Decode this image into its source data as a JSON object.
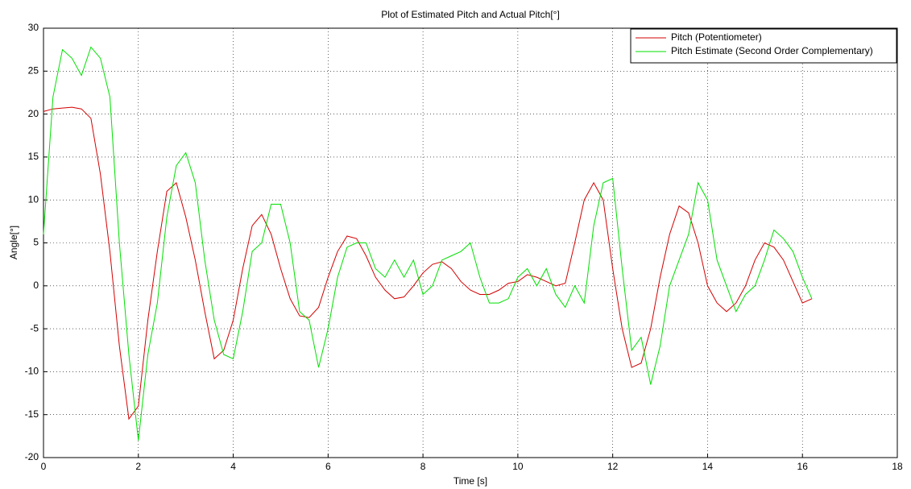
{
  "chart_data": {
    "type": "line",
    "title": "Plot of Estimated Pitch and Actual Pitch[°]",
    "x_label": "Time [s]",
    "y_label": "Angle[°]",
    "x": [
      0,
      0.2,
      0.4,
      0.6,
      0.8,
      1,
      1.2,
      1.4,
      1.6,
      1.8,
      2,
      2.2,
      2.4,
      2.6,
      2.8,
      3,
      3.2,
      3.4,
      3.6,
      3.8,
      4,
      4.2,
      4.4,
      4.6,
      4.8,
      5,
      5.2,
      5.4,
      5.6,
      5.8,
      6,
      6.2,
      6.4,
      6.6,
      6.8,
      7,
      7.2,
      7.4,
      7.6,
      7.8,
      8,
      8.2,
      8.4,
      8.6,
      8.8,
      9,
      9.2,
      9.4,
      9.6,
      9.8,
      10,
      10.2,
      10.4,
      10.6,
      10.8,
      11,
      11.2,
      11.4,
      11.6,
      11.8,
      12,
      12.2,
      12.4,
      12.6,
      12.8,
      13,
      13.2,
      13.4,
      13.6,
      13.8,
      14,
      14.2,
      14.4,
      14.6,
      14.8,
      15,
      15.2,
      15.4,
      15.6,
      15.8,
      16,
      16.2
    ],
    "series": [
      {
        "name": "Pitch (Potentiometer)",
        "color": "#d40000",
        "values": [
          20.3,
          20.6,
          20.7,
          20.8,
          20.6,
          19.5,
          13,
          4,
          -7,
          -15.5,
          -14,
          -4,
          4,
          11,
          12,
          8,
          3,
          -3,
          -8.5,
          -7.5,
          -4,
          2,
          7,
          8.3,
          6,
          2,
          -1.5,
          -3.5,
          -3.7,
          -2.5,
          1,
          4,
          5.8,
          5.5,
          3.5,
          1,
          -0.5,
          -1.5,
          -1.3,
          0,
          1.5,
          2.5,
          2.8,
          2,
          0.5,
          -0.5,
          -1,
          -1,
          -0.5,
          0.3,
          0.5,
          1.3,
          1,
          0.5,
          0,
          0.3,
          5,
          10,
          12,
          10,
          2,
          -5,
          -9.5,
          -9,
          -5,
          1,
          6,
          9.3,
          8.5,
          5,
          0,
          -2,
          -3,
          -2,
          0,
          3,
          5,
          4.5,
          3,
          0.5,
          -2,
          -1.5
        ]
      },
      {
        "name": "Pitch Estimate (Second Order Complementary)",
        "color": "#00e000",
        "values": [
          6,
          22,
          27.5,
          26.5,
          24.5,
          27.8,
          26.5,
          22,
          5,
          -8,
          -18,
          -8,
          -2,
          8,
          14,
          15.5,
          12,
          3,
          -4,
          -8,
          -8.5,
          -3,
          4,
          5,
          9.5,
          9.5,
          5,
          -3,
          -4,
          -9.5,
          -5,
          1,
          4.5,
          5,
          5,
          2,
          1,
          3,
          1,
          3,
          -1,
          0,
          3,
          3.5,
          4,
          5,
          1,
          -2,
          -2,
          -1.5,
          1,
          2,
          0,
          2,
          -1,
          -2.5,
          0,
          -2,
          7,
          12,
          12.5,
          2,
          -7.5,
          -6,
          -11.5,
          -7,
          0,
          3,
          6,
          12,
          10,
          3,
          0,
          -3,
          -1,
          0,
          3,
          6.5,
          5.5,
          4,
          1,
          -1.5
        ]
      }
    ],
    "xlim": [
      0,
      18
    ],
    "xticks": [
      0,
      2,
      4,
      6,
      8,
      10,
      12,
      14,
      16,
      18
    ],
    "ylim": [
      -20,
      30
    ],
    "yticks": [
      -20,
      -15,
      -10,
      -5,
      0,
      5,
      10,
      15,
      20,
      25,
      30
    ],
    "grid": true,
    "legend": "upper right"
  }
}
